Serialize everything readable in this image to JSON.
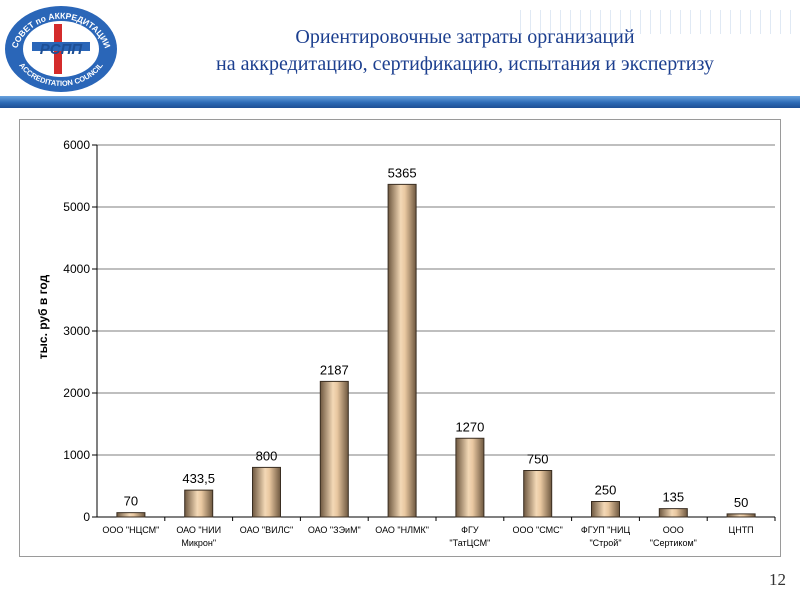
{
  "header": {
    "title_line1": "Ориентировочные затраты организаций",
    "title_line2": "на аккредитацию, сертификацию, испытания и экспертизу",
    "logo_top_text": "СОВЕТ по АККРЕДИТАЦИИ",
    "logo_bottom_text": "ACCREDITATION COUNCIL",
    "logo_center_text": "РСПП"
  },
  "colors": {
    "title": "#1c3f8f",
    "banner": "#2d6bb6",
    "bar_light": "#f3d8b6",
    "bar_dark": "#7a6248",
    "logo_blue": "#2a66b8",
    "logo_red": "#d42b2b"
  },
  "chart_data": {
    "type": "bar",
    "title": "",
    "xlabel": "",
    "ylabel": "тыс. руб в год",
    "ylim": [
      0,
      6000
    ],
    "yticks": [
      0,
      1000,
      2000,
      3000,
      4000,
      5000,
      6000
    ],
    "grid": true,
    "categories": [
      [
        "ООО \"НЦСМ\""
      ],
      [
        "ОАО \"НИИ",
        "Микрон\""
      ],
      [
        "ОАО \"ВИЛС\""
      ],
      [
        "ОАО \"ЗЭиМ\""
      ],
      [
        "ОАО \"НЛМК\""
      ],
      [
        "ФГУ",
        "\"ТатЦСМ\""
      ],
      [
        "ООО \"СМС\""
      ],
      [
        "ФГУП \"НИЦ",
        "\"Строй\""
      ],
      [
        "ООО",
        "\"Сертиком\""
      ],
      [
        "ЦНТП"
      ]
    ],
    "values": [
      70,
      433.5,
      800,
      2187,
      5365,
      1270,
      750,
      250,
      135,
      50
    ],
    "value_labels": [
      "70",
      "433,5",
      "800",
      "2187",
      "5365",
      "1270",
      "750",
      "250",
      "135",
      "50"
    ]
  },
  "page_number": "12"
}
